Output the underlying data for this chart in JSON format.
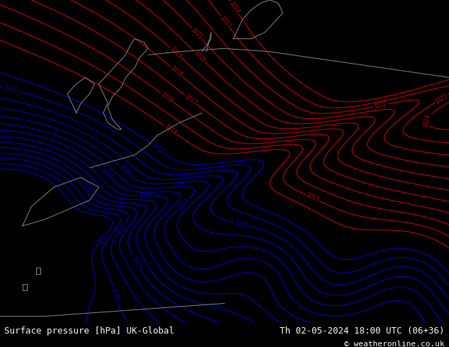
{
  "title_left": "Surface pressure [hPa] UK-Global",
  "title_right": "Th 02-05-2024 18:00 UTC (06+36)",
  "copyright": "© weatheronline.co.uk",
  "bg_color": "#c8e6a0",
  "contour_color_low": "#0000cc",
  "contour_color_high": "#cc0000",
  "contour_color_border": "#000000",
  "footer_fontsize": 9,
  "coast_color": "#888888"
}
